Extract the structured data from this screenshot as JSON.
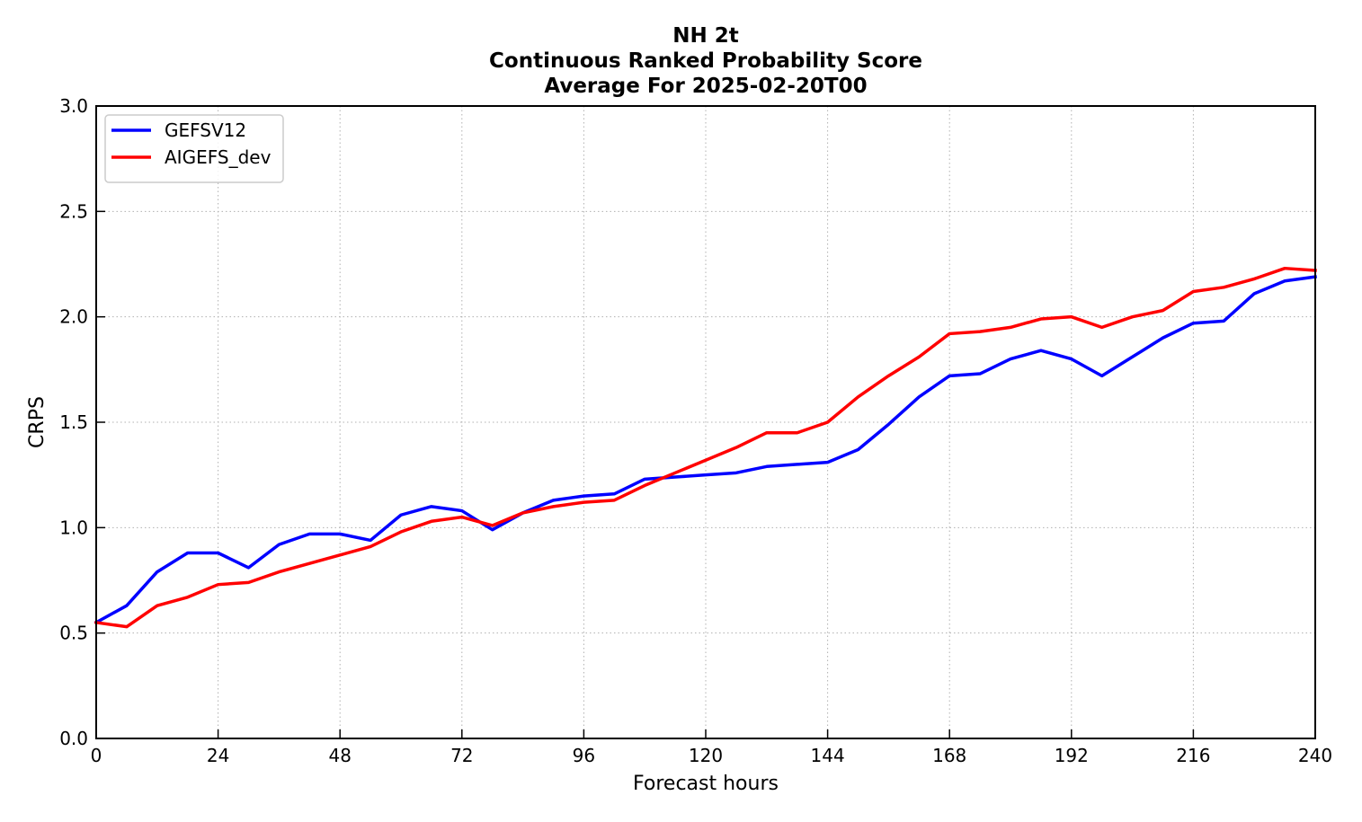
{
  "chart_data": {
    "type": "line",
    "title": [
      "NH 2t",
      "Continuous Ranked Probability Score",
      "Average For 2025-02-20T00"
    ],
    "xlabel": "Forecast hours",
    "ylabel": "CRPS",
    "xlim": [
      0,
      240
    ],
    "ylim": [
      0,
      3.0
    ],
    "xticks": [
      0,
      24,
      48,
      72,
      96,
      120,
      144,
      168,
      192,
      216,
      240
    ],
    "yticks": [
      0.0,
      0.5,
      1.0,
      1.5,
      2.0,
      2.5,
      3.0
    ],
    "xtick_labels": [
      "0",
      "24",
      "48",
      "72",
      "96",
      "120",
      "144",
      "168",
      "192",
      "216",
      "240"
    ],
    "ytick_labels": [
      "0.0",
      "0.5",
      "1.0",
      "1.5",
      "2.0",
      "2.5",
      "3.0"
    ],
    "grid": true,
    "legend_position": "top-left",
    "x": [
      0,
      6,
      12,
      18,
      24,
      30,
      36,
      42,
      48,
      54,
      60,
      66,
      72,
      78,
      84,
      90,
      96,
      102,
      108,
      114,
      120,
      126,
      132,
      138,
      144,
      150,
      156,
      162,
      168,
      174,
      180,
      186,
      192,
      198,
      204,
      210,
      216,
      222,
      228,
      234,
      240
    ],
    "series": [
      {
        "name": "GEFSV12",
        "color": "#0000ff",
        "values": [
          0.55,
          0.63,
          0.79,
          0.88,
          0.88,
          0.81,
          0.92,
          0.97,
          0.97,
          0.94,
          1.06,
          1.1,
          1.08,
          0.99,
          1.07,
          1.13,
          1.15,
          1.16,
          1.23,
          1.24,
          1.25,
          1.26,
          1.29,
          1.3,
          1.31,
          1.37,
          1.49,
          1.62,
          1.72,
          1.73,
          1.8,
          1.84,
          1.8,
          1.72,
          1.81,
          1.9,
          1.97,
          1.98,
          2.11,
          2.17,
          2.19
        ]
      },
      {
        "name": "AIGEFS_dev",
        "color": "#ff0000",
        "values": [
          0.55,
          0.53,
          0.63,
          0.67,
          0.73,
          0.74,
          0.79,
          0.83,
          0.87,
          0.91,
          0.98,
          1.03,
          1.05,
          1.01,
          1.07,
          1.1,
          1.12,
          1.13,
          1.2,
          1.26,
          1.32,
          1.38,
          1.45,
          1.45,
          1.5,
          1.62,
          1.72,
          1.81,
          1.92,
          1.93,
          1.95,
          1.99,
          2.0,
          1.95,
          2.0,
          2.03,
          2.12,
          2.14,
          2.18,
          2.23,
          2.22
        ]
      }
    ]
  }
}
